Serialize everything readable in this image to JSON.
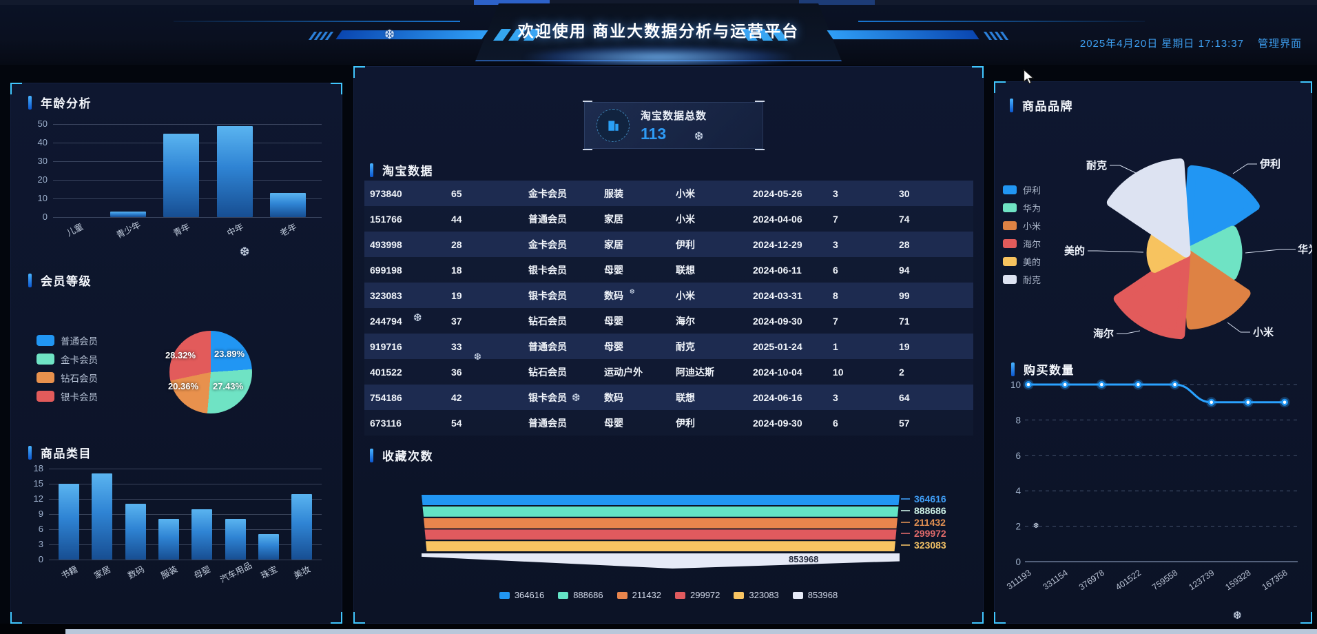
{
  "header": {
    "title": "欢迎使用 商业大数据分析与运营平台",
    "datetime": "2025年4月20日 星期日 17:13:37",
    "admin_link": "管理界面"
  },
  "left": {
    "age": {
      "title": "年龄分析",
      "categories": [
        "儿童",
        "青少年",
        "青年",
        "中年",
        "老年"
      ],
      "values": [
        0,
        3,
        45,
        49,
        13
      ],
      "y_ticks": [
        0,
        10,
        20,
        30,
        40,
        50
      ]
    },
    "member": {
      "title": "会员等级",
      "slices": [
        {
          "label": "普通会员",
          "pct": 23.89,
          "color": "#2196f3"
        },
        {
          "label": "金卡会员",
          "pct": 27.43,
          "color": "#6fe3c4"
        },
        {
          "label": "钻石会员",
          "pct": 20.36,
          "color": "#e8914d"
        },
        {
          "label": "银卡会员",
          "pct": 28.32,
          "color": "#e25b5b"
        }
      ]
    },
    "category": {
      "title": "商品类目",
      "categories": [
        "书籍",
        "家居",
        "数码",
        "服装",
        "母婴",
        "汽车用品",
        "珠宝",
        "美妆"
      ],
      "values": [
        15,
        17,
        11,
        8,
        10,
        8,
        5,
        13
      ],
      "y_ticks": [
        0,
        3,
        6,
        9,
        12,
        15,
        18
      ]
    }
  },
  "middle": {
    "stat": {
      "label": "淘宝数据总数",
      "value": "113"
    },
    "table": {
      "title": "淘宝数据",
      "rows": [
        [
          "973840",
          "65",
          "金卡会员",
          "服装",
          "小米",
          "2024-05-26",
          "3",
          "30"
        ],
        [
          "151766",
          "44",
          "普通会员",
          "家居",
          "小米",
          "2024-04-06",
          "7",
          "74"
        ],
        [
          "493998",
          "28",
          "金卡会员",
          "家居",
          "伊利",
          "2024-12-29",
          "3",
          "28"
        ],
        [
          "699198",
          "18",
          "银卡会员",
          "母婴",
          "联想",
          "2024-06-11",
          "6",
          "94"
        ],
        [
          "323083",
          "19",
          "银卡会员",
          "数码",
          "小米",
          "2024-03-31",
          "8",
          "99"
        ],
        [
          "244794",
          "37",
          "钻石会员",
          "母婴",
          "海尔",
          "2024-09-30",
          "7",
          "71"
        ],
        [
          "919716",
          "33",
          "普通会员",
          "母婴",
          "耐克",
          "2025-01-24",
          "1",
          "19"
        ],
        [
          "401522",
          "36",
          "钻石会员",
          "运动户外",
          "阿迪达斯",
          "2024-10-04",
          "10",
          "2"
        ],
        [
          "754186",
          "42",
          "银卡会员",
          "数码",
          "联想",
          "2024-06-16",
          "3",
          "64"
        ],
        [
          "673116",
          "54",
          "普通会员",
          "母婴",
          "伊利",
          "2024-09-30",
          "6",
          "57"
        ]
      ]
    },
    "funnel": {
      "title": "收藏次数",
      "bands": [
        {
          "value": "364616",
          "color": "#2196f3",
          "label_color": "#3f9df5"
        },
        {
          "value": "888686",
          "color": "#63e3c5",
          "label_color": "#cdf2e7"
        },
        {
          "value": "211432",
          "color": "#e8854d",
          "label_color": "#e09052"
        },
        {
          "value": "299972",
          "color": "#e05a5e",
          "label_color": "#e06a6a"
        },
        {
          "value": "323083",
          "color": "#f9c462",
          "label_color": "#f3c266"
        }
      ],
      "tail": {
        "value": "853968",
        "color": "#e6eaf7"
      },
      "legend": [
        {
          "label": "364616",
          "color": "#2196f3"
        },
        {
          "label": "888686",
          "color": "#63e3c5"
        },
        {
          "label": "211432",
          "color": "#e8854d"
        },
        {
          "label": "299972",
          "color": "#e05a5e"
        },
        {
          "label": "323083",
          "color": "#f9c462"
        },
        {
          "label": "853968",
          "color": "#e6eaf7"
        }
      ]
    }
  },
  "right": {
    "brand": {
      "title": "商品品牌",
      "legend": [
        {
          "label": "伊利",
          "color": "#2196f3"
        },
        {
          "label": "华为",
          "color": "#6fe3c4"
        },
        {
          "label": "小米",
          "color": "#de8244"
        },
        {
          "label": "海尔",
          "color": "#e25b5b"
        },
        {
          "label": "美的",
          "color": "#f7c35f"
        },
        {
          "label": "耐克",
          "color": "#dde3f2"
        }
      ],
      "callouts": [
        "伊利",
        "华为",
        "小米",
        "海尔",
        "美的",
        "耐克"
      ]
    },
    "purchase": {
      "title": "购买数量",
      "x_labels": [
        "311193",
        "331154",
        "376978",
        "401522",
        "759558",
        "123739",
        "159328",
        "167358"
      ],
      "values": [
        10,
        10,
        10,
        10,
        10,
        9,
        9,
        9
      ],
      "y_ticks": [
        0,
        2,
        4,
        6,
        8,
        10
      ]
    }
  },
  "decor": {
    "snowflake_char": "❆"
  },
  "chart_data": [
    {
      "type": "bar",
      "title": "年龄分析",
      "categories": [
        "儿童",
        "青少年",
        "青年",
        "中年",
        "老年"
      ],
      "values": [
        0,
        3,
        45,
        49,
        13
      ],
      "xlabel": "",
      "ylabel": "",
      "ylim": [
        0,
        50
      ],
      "grid": true
    },
    {
      "type": "pie",
      "title": "会员等级",
      "labels": [
        "普通会员",
        "金卡会员",
        "钻石会员",
        "银卡会员"
      ],
      "values": [
        23.89,
        27.43,
        20.36,
        28.32
      ],
      "unit": "%",
      "legend_position": "left"
    },
    {
      "type": "bar",
      "title": "商品类目",
      "categories": [
        "书籍",
        "家居",
        "数码",
        "服装",
        "母婴",
        "汽车用品",
        "珠宝",
        "美妆"
      ],
      "values": [
        15,
        17,
        11,
        8,
        10,
        8,
        5,
        13
      ],
      "xlabel": "",
      "ylabel": "",
      "ylim": [
        0,
        18
      ],
      "grid": true
    },
    {
      "type": "funnel",
      "title": "收藏次数",
      "labels": [
        "364616",
        "888686",
        "211432",
        "299972",
        "323083",
        "853968"
      ],
      "values": [
        364616,
        888686,
        211432,
        299972,
        323083,
        853968
      ]
    },
    {
      "type": "pie",
      "subtype": "rose",
      "title": "商品品牌",
      "labels": [
        "伊利",
        "华为",
        "小米",
        "海尔",
        "美的",
        "耐克"
      ],
      "values_relative_radius": [
        0.93,
        0.59,
        0.81,
        0.91,
        0.42,
        1.0
      ]
    },
    {
      "type": "line",
      "title": "购买数量",
      "x": [
        "311193",
        "331154",
        "376978",
        "401522",
        "759558",
        "123739",
        "159328",
        "167358"
      ],
      "values": [
        10,
        10,
        10,
        10,
        10,
        9,
        9,
        9
      ],
      "ylim": [
        0,
        10
      ],
      "grid": "dashed"
    }
  ]
}
